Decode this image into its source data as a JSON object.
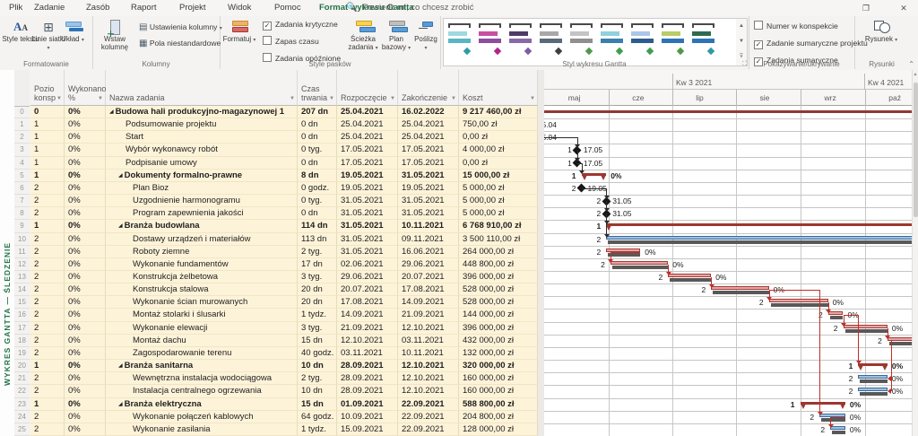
{
  "menu": {
    "tabs": [
      "Plik",
      "Zadanie",
      "Zasób",
      "Raport",
      "Projekt",
      "Widok",
      "Pomoc",
      "Format wykresu Gantta"
    ],
    "active_tab": "Format wykresu Gantta",
    "search_placeholder": "Powiedz mi, co chcesz zrobić"
  },
  "ribbon": {
    "formatowanie": {
      "label": "Formatowanie",
      "style_tekstu": "Style tekstu",
      "linie_siatki": "Linie siatki",
      "uklad": "Układ"
    },
    "kolumny": {
      "label": "Kolumny",
      "wstaw": "Wstaw kolumnę",
      "ustawienia": "Ustawienia kolumny",
      "pola": "Pola niestandardowe"
    },
    "style_paskow": {
      "label": "Style pasków",
      "formatuj": "Formatuj",
      "sciezka": "Ścieżka zadania",
      "plan": "Plan bazowy",
      "poslizg": "Poślizg",
      "checkboxes": [
        {
          "label": "Zadania krytyczne",
          "checked": true
        },
        {
          "label": "Zapas czasu",
          "checked": false
        },
        {
          "label": "Zadania opóźnione",
          "checked": false
        }
      ]
    },
    "styl_wykresu": {
      "label": "Styl wykresu Gantta",
      "thumbs": [
        {
          "a": "#9fd8e0",
          "b": "#58b6c4",
          "d": "#2f9aa8"
        },
        {
          "a": "#c94f9e",
          "b": "#8e4d9e",
          "d": "#b0268c"
        },
        {
          "a": "#513a66",
          "b": "#8a68a8",
          "d": "#7d5ba6"
        },
        {
          "a": "#a8a8a8",
          "b": "#5a6a7a",
          "d": "#3f3f3f"
        },
        {
          "a": "#c4c4c4",
          "b": "#8f8f8f",
          "d": "#4e9a47"
        },
        {
          "a": "#8fd0dc",
          "b": "#3a7fae",
          "d": "#3f9e4d"
        },
        {
          "a": "#a9c7e8",
          "b": "#2a5d8f",
          "d": "#3f9e4d"
        },
        {
          "a": "#b9cc66",
          "b": "#2e74b5",
          "d": "#4e9a47"
        },
        {
          "a": "#2e6b4f",
          "b": "#2e74b5",
          "d": "#2f9aa8"
        }
      ]
    },
    "pokazywanie": {
      "label": "Pokazywanie/ukrywanie",
      "checkboxes": [
        {
          "label": "Numer w konspekcie",
          "checked": false
        },
        {
          "label": "Zadanie sumaryczne projektu",
          "checked": true
        },
        {
          "label": "Zadania sumaryczne",
          "checked": true
        }
      ]
    },
    "rysunki": {
      "label": "Rysunki",
      "rysunek": "Rysunek"
    }
  },
  "view_label": "WYKRES GANTTA — ŚLEDZENIE",
  "table": {
    "headers": [
      {
        "lines": [
          "Pozio",
          "konsp"
        ]
      },
      {
        "lines": [
          "Wykonano",
          "%"
        ]
      },
      {
        "lines": [
          "Nazwa zadania"
        ]
      },
      {
        "lines": [
          "Czas",
          "trwania"
        ]
      },
      {
        "lines": [
          "Rozpoczęcie"
        ]
      },
      {
        "lines": [
          "Zakończenie"
        ]
      },
      {
        "lines": [
          "Koszt"
        ]
      }
    ],
    "rows": [
      {
        "lvl": "0",
        "pct": "0%",
        "name": "Budowa hali produkcyjno-magazynowej 1",
        "dur": "207 dn",
        "start": "25.04.2021",
        "end": "16.02.2022",
        "cost": "9 217 460,00 zł",
        "kind": "project",
        "crit": true
      },
      {
        "lvl": "1",
        "pct": "0%",
        "name": "Podsumowanie projektu",
        "dur": "0 dn",
        "start": "25.04.2021",
        "end": "25.04.2021",
        "cost": "750,00 zł",
        "kind": "milestone"
      },
      {
        "lvl": "1",
        "pct": "0%",
        "name": "Start",
        "dur": "0 dn",
        "start": "25.04.2021",
        "end": "25.04.2021",
        "cost": "0,00 zł",
        "kind": "milestone"
      },
      {
        "lvl": "1",
        "pct": "0%",
        "name": "Wybór wykonawcy robót",
        "dur": "0 tyg.",
        "start": "17.05.2021",
        "end": "17.05.2021",
        "cost": "4 000,00 zł",
        "kind": "milestone"
      },
      {
        "lvl": "1",
        "pct": "0%",
        "name": "Podpisanie umowy",
        "dur": "0 dn",
        "start": "17.05.2021",
        "end": "17.05.2021",
        "cost": "0,00 zł",
        "kind": "milestone"
      },
      {
        "lvl": "1",
        "pct": "0%",
        "name": "Dokumenty formalno-prawne",
        "dur": "8 dn",
        "start": "19.05.2021",
        "end": "31.05.2021",
        "cost": "15 000,00 zł",
        "kind": "summary"
      },
      {
        "lvl": "2",
        "pct": "0%",
        "name": "Plan Bioz",
        "dur": "0 godz.",
        "start": "19.05.2021",
        "end": "19.05.2021",
        "cost": "5 000,00 zł",
        "kind": "milestone"
      },
      {
        "lvl": "2",
        "pct": "0%",
        "name": "Uzgodnienie harmonogramu",
        "dur": "0 tyg.",
        "start": "31.05.2021",
        "end": "31.05.2021",
        "cost": "5 000,00 zł",
        "kind": "milestone"
      },
      {
        "lvl": "2",
        "pct": "0%",
        "name": "Program zapewnienia jakości",
        "dur": "0 dn",
        "start": "31.05.2021",
        "end": "31.05.2021",
        "cost": "5 000,00 zł",
        "kind": "milestone"
      },
      {
        "lvl": "1",
        "pct": "0%",
        "name": "Branża budowlana",
        "dur": "114 dn",
        "start": "31.05.2021",
        "end": "10.11.2021",
        "cost": "6 768 910,00 zł",
        "kind": "summary"
      },
      {
        "lvl": "2",
        "pct": "0%",
        "name": "Dostawy urządzeń i materiałów",
        "dur": "113 dn",
        "start": "31.05.2021",
        "end": "09.11.2021",
        "cost": "3 500 110,00 zł",
        "kind": "task",
        "crit": false
      },
      {
        "lvl": "2",
        "pct": "0%",
        "name": "Roboty ziemne",
        "dur": "2 tyg.",
        "start": "31.05.2021",
        "end": "16.06.2021",
        "cost": "264 000,00 zł",
        "kind": "task",
        "crit": true
      },
      {
        "lvl": "2",
        "pct": "0%",
        "name": "Wykonanie fundamentów",
        "dur": "17 dn",
        "start": "02.06.2021",
        "end": "29.06.2021",
        "cost": "448 800,00 zł",
        "kind": "task",
        "crit": true
      },
      {
        "lvl": "2",
        "pct": "0%",
        "name": "Konstrukcja żelbetowa",
        "dur": "3 tyg.",
        "start": "29.06.2021",
        "end": "20.07.2021",
        "cost": "396 000,00 zł",
        "kind": "task",
        "crit": true
      },
      {
        "lvl": "2",
        "pct": "0%",
        "name": "Konstrukcja stalowa",
        "dur": "20 dn",
        "start": "20.07.2021",
        "end": "17.08.2021",
        "cost": "528 000,00 zł",
        "kind": "task",
        "crit": true
      },
      {
        "lvl": "2",
        "pct": "0%",
        "name": "Wykonanie ścian murowanych",
        "dur": "20 dn",
        "start": "17.08.2021",
        "end": "14.09.2021",
        "cost": "528 000,00 zł",
        "kind": "task",
        "crit": true
      },
      {
        "lvl": "2",
        "pct": "0%",
        "name": "Montaż stolarki i ślusarki",
        "dur": "1 tydz.",
        "start": "14.09.2021",
        "end": "21.09.2021",
        "cost": "144 000,00 zł",
        "kind": "task",
        "crit": true
      },
      {
        "lvl": "2",
        "pct": "0%",
        "name": "Wykonanie elewacji",
        "dur": "3 tyg.",
        "start": "21.09.2021",
        "end": "12.10.2021",
        "cost": "396 000,00 zł",
        "kind": "task",
        "crit": true
      },
      {
        "lvl": "2",
        "pct": "0%",
        "name": "Montaż dachu",
        "dur": "15 dn",
        "start": "12.10.2021",
        "end": "03.11.2021",
        "cost": "432 000,00 zł",
        "kind": "task",
        "crit": true
      },
      {
        "lvl": "2",
        "pct": "0%",
        "name": "Zagospodarowanie terenu",
        "dur": "40 godz.",
        "start": "03.11.2021",
        "end": "10.11.2021",
        "cost": "132 000,00 zł",
        "kind": "task",
        "crit": true
      },
      {
        "lvl": "1",
        "pct": "0%",
        "name": "Branża sanitarna",
        "dur": "10 dn",
        "start": "28.09.2021",
        "end": "12.10.2021",
        "cost": "320 000,00 zł",
        "kind": "summary"
      },
      {
        "lvl": "2",
        "pct": "0%",
        "name": "Wewnętrzna instalacja wodociągowa",
        "dur": "2 tyg.",
        "start": "28.09.2021",
        "end": "12.10.2021",
        "cost": "160 000,00 zł",
        "kind": "task",
        "crit": false
      },
      {
        "lvl": "2",
        "pct": "0%",
        "name": "Instalacja centralnego ogrzewania",
        "dur": "10 dn",
        "start": "28.09.2021",
        "end": "12.10.2021",
        "cost": "160 000,00 zł",
        "kind": "task",
        "crit": false
      },
      {
        "lvl": "1",
        "pct": "0%",
        "name": "Branża elektryczna",
        "dur": "15 dn",
        "start": "01.09.2021",
        "end": "22.09.2021",
        "cost": "588 800,00 zł",
        "kind": "summary"
      },
      {
        "lvl": "2",
        "pct": "0%",
        "name": "Wykonanie połączeń kablowych",
        "dur": "64 godz.",
        "start": "10.09.2021",
        "end": "22.09.2021",
        "cost": "204 800,00 zł",
        "kind": "task",
        "crit": false
      },
      {
        "lvl": "2",
        "pct": "0%",
        "name": "Wykonanie zasilania",
        "dur": "1 tydz.",
        "start": "15.09.2021",
        "end": "22.09.2021",
        "cost": "128 000,00 zł",
        "kind": "task",
        "crit": false
      }
    ]
  },
  "chart_data": {
    "type": "gantt",
    "timescale": {
      "quarters": [
        "Kw 3 2021",
        "Kw 4 2021"
      ],
      "months": [
        "maj",
        "cze",
        "lip",
        "sie",
        "wrz",
        "paź"
      ]
    },
    "progress_label": "0%",
    "tasks_note": "bars derive from table.rows dates; kind project|summary|milestone|task; crit=red critical path, non-crit=blue",
    "links": [
      {
        "f": 2,
        "t": 3
      },
      {
        "f": 3,
        "t": 4
      },
      {
        "f": 4,
        "t": 5
      },
      {
        "f": 6,
        "t": 7
      },
      {
        "f": 7,
        "t": 8
      },
      {
        "f": 8,
        "t": 9
      },
      {
        "f": 8,
        "t": 10
      },
      {
        "f": 11,
        "t": 12
      },
      {
        "f": 12,
        "t": 13
      },
      {
        "f": 13,
        "t": 14
      },
      {
        "f": 14,
        "t": 15
      },
      {
        "f": 15,
        "t": 16
      },
      {
        "f": 16,
        "t": 17
      },
      {
        "f": 17,
        "t": 18
      },
      {
        "f": 14,
        "t": 24
      },
      {
        "f": 16,
        "t": 20
      },
      {
        "f": 18,
        "t": 21,
        "tx": "end"
      },
      {
        "f": 18,
        "t": 22,
        "tx": "end"
      },
      {
        "f": 24,
        "t": 25
      }
    ],
    "colors": {
      "critical_border": "#a83832",
      "critical_fill": "#e4a6a7",
      "normal_border": "#3a6a9e",
      "normal_fill": "#9fc0e0",
      "baseline": "#595959",
      "summary": "#9e372f",
      "project": "#8e3a33",
      "link_critical": "#bf2e27",
      "link_normal": "#2b2b2b",
      "accent_green": "#217346"
    }
  }
}
